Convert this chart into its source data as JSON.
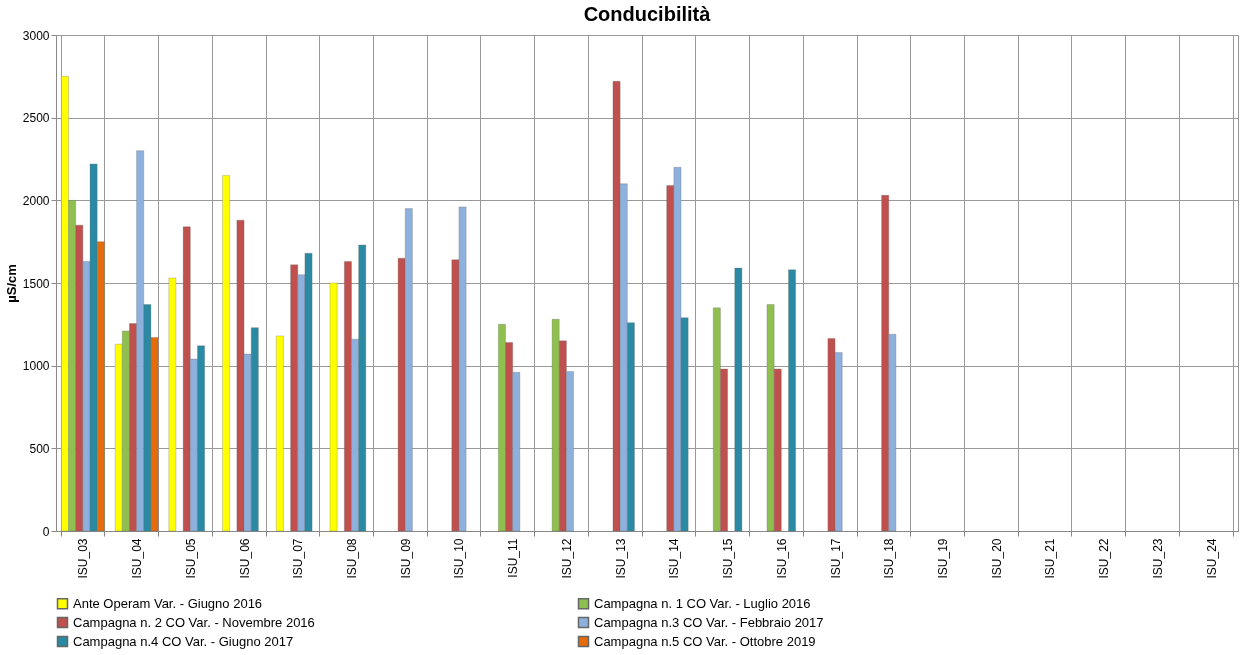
{
  "chart_data": {
    "type": "bar",
    "title": "Conducibilità",
    "ylabel": "µS/cm",
    "categories": [
      "ISU_03",
      "ISU_04",
      "ISU_05",
      "ISU_06",
      "ISU_07",
      "ISU_08",
      "ISU_09",
      "ISU_10",
      "ISU_11",
      "ISU_12",
      "ISU_13",
      "ISU_14",
      "ISU_15",
      "ISU_16",
      "ISU_17",
      "ISU_18",
      "ISU_19",
      "ISU_20",
      "ISU_21",
      "ISU_22",
      "ISU_23",
      "ISU_24"
    ],
    "series": [
      {
        "name": "Ante Operam Var. - Giugno 2016",
        "color": "#ffff00",
        "values": [
          2750,
          1130,
          1530,
          2150,
          1180,
          1500,
          null,
          null,
          null,
          null,
          null,
          null,
          null,
          null,
          null,
          null,
          null,
          null,
          null,
          null,
          null,
          null
        ]
      },
      {
        "name": "Campagna n. 1 CO Var. - Luglio 2016",
        "color": "#8fc04f",
        "values": [
          2000,
          1210,
          null,
          null,
          null,
          null,
          null,
          null,
          1250,
          1280,
          null,
          null,
          1350,
          1370,
          null,
          null,
          null,
          null,
          null,
          null,
          null,
          null
        ]
      },
      {
        "name": "Campagna n. 2 CO Var. - Novembre 2016",
        "color": "#c0504d",
        "values": [
          1850,
          1255,
          1840,
          1880,
          1610,
          1630,
          1650,
          1640,
          1140,
          1150,
          2720,
          2090,
          980,
          980,
          1165,
          2030,
          null,
          null,
          null,
          null,
          null,
          null
        ]
      },
      {
        "name": "Campagna n.3 CO Var. - Febbraio 2017",
        "color": "#8eb0dc",
        "values": [
          1630,
          2300,
          1040,
          1070,
          1550,
          1160,
          1950,
          1960,
          960,
          965,
          2100,
          2200,
          null,
          null,
          1080,
          1190,
          null,
          null,
          null,
          null,
          null,
          null
        ]
      },
      {
        "name": "Campagna n.4 CO Var. - Giugno 2017",
        "color": "#2a8aa3",
        "values": [
          2220,
          1370,
          1120,
          1230,
          1680,
          1730,
          null,
          null,
          null,
          null,
          1260,
          1290,
          1590,
          1580,
          null,
          null,
          null,
          null,
          null,
          null,
          null,
          null
        ]
      },
      {
        "name": "Campagna n.5 CO Var. - Ottobre 2019",
        "color": "#e46c0a",
        "values": [
          1750,
          1170,
          null,
          null,
          null,
          null,
          null,
          null,
          null,
          null,
          null,
          null,
          null,
          null,
          null,
          null,
          null,
          null,
          null,
          null,
          null,
          null
        ]
      }
    ],
    "ylim": [
      0,
      3000
    ],
    "yticks": [
      0,
      500,
      1000,
      1500,
      2000,
      2500,
      3000
    ],
    "grid": true,
    "legend": "bottom"
  }
}
